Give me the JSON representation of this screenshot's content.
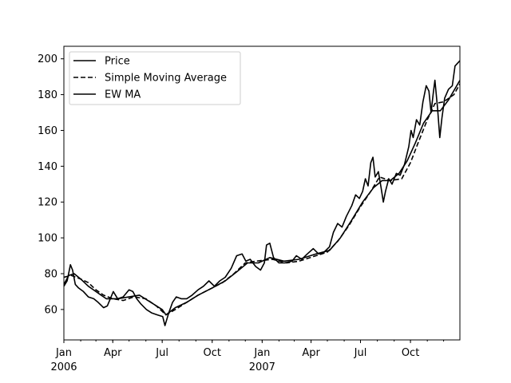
{
  "chart_data": {
    "type": "line",
    "title": "",
    "xlabel": "",
    "ylabel": "",
    "x_range": [
      "2006-01-01",
      "2007-12-31"
    ],
    "ylim": [
      43,
      207
    ],
    "y_ticks": [
      60,
      80,
      100,
      120,
      140,
      160,
      180,
      200
    ],
    "x_ticks": [
      {
        "date": "2006-01-01",
        "label": "Jan",
        "sublabel": "2006"
      },
      {
        "date": "2006-04-01",
        "label": "Apr",
        "sublabel": ""
      },
      {
        "date": "2006-07-01",
        "label": "Jul",
        "sublabel": ""
      },
      {
        "date": "2006-10-01",
        "label": "Oct",
        "sublabel": ""
      },
      {
        "date": "2007-01-01",
        "label": "Jan",
        "sublabel": "2007"
      },
      {
        "date": "2007-04-01",
        "label": "Apr",
        "sublabel": ""
      },
      {
        "date": "2007-07-01",
        "label": "Jul",
        "sublabel": ""
      },
      {
        "date": "2007-10-01",
        "label": "Oct",
        "sublabel": ""
      }
    ],
    "grid": false,
    "legend_position": "upper left",
    "line_color": "#000000",
    "series": [
      {
        "name": "Price",
        "style": "solid",
        "points": [
          [
            "2006-01-01",
            73
          ],
          [
            "2006-01-07",
            76
          ],
          [
            "2006-01-13",
            85
          ],
          [
            "2006-01-17",
            82
          ],
          [
            "2006-01-22",
            74
          ],
          [
            "2006-01-28",
            72
          ],
          [
            "2006-02-06",
            70
          ],
          [
            "2006-02-15",
            67
          ],
          [
            "2006-02-25",
            66
          ],
          [
            "2006-03-05",
            64
          ],
          [
            "2006-03-15",
            61
          ],
          [
            "2006-03-22",
            62
          ],
          [
            "2006-04-02",
            70
          ],
          [
            "2006-04-10",
            66
          ],
          [
            "2006-04-20",
            67
          ],
          [
            "2006-05-01",
            71
          ],
          [
            "2006-05-08",
            70
          ],
          [
            "2006-05-15",
            66
          ],
          [
            "2006-05-23",
            63
          ],
          [
            "2006-06-02",
            60
          ],
          [
            "2006-06-12",
            58
          ],
          [
            "2006-06-22",
            57
          ],
          [
            "2006-07-02",
            56
          ],
          [
            "2006-07-06",
            51
          ],
          [
            "2006-07-13",
            58
          ],
          [
            "2006-07-20",
            64
          ],
          [
            "2006-07-27",
            67
          ],
          [
            "2006-08-05",
            66
          ],
          [
            "2006-08-15",
            66
          ],
          [
            "2006-08-25",
            68
          ],
          [
            "2006-09-05",
            71
          ],
          [
            "2006-09-15",
            73
          ],
          [
            "2006-09-25",
            76
          ],
          [
            "2006-10-05",
            73
          ],
          [
            "2006-10-15",
            76
          ],
          [
            "2006-10-25",
            78
          ],
          [
            "2006-11-05",
            83
          ],
          [
            "2006-11-15",
            90
          ],
          [
            "2006-11-25",
            91
          ],
          [
            "2006-12-02",
            87
          ],
          [
            "2006-12-10",
            88
          ],
          [
            "2006-12-20",
            84
          ],
          [
            "2006-12-29",
            82
          ],
          [
            "2007-01-05",
            86
          ],
          [
            "2007-01-09",
            96
          ],
          [
            "2007-01-15",
            97
          ],
          [
            "2007-01-22",
            89
          ],
          [
            "2007-02-01",
            86
          ],
          [
            "2007-02-12",
            86
          ],
          [
            "2007-02-25",
            87
          ],
          [
            "2007-03-05",
            90
          ],
          [
            "2007-03-15",
            88
          ],
          [
            "2007-03-25",
            91
          ],
          [
            "2007-04-05",
            94
          ],
          [
            "2007-04-15",
            91
          ],
          [
            "2007-04-25",
            92
          ],
          [
            "2007-05-05",
            95
          ],
          [
            "2007-05-12",
            103
          ],
          [
            "2007-05-20",
            108
          ],
          [
            "2007-05-28",
            106
          ],
          [
            "2007-06-05",
            112
          ],
          [
            "2007-06-15",
            118
          ],
          [
            "2007-06-22",
            124
          ],
          [
            "2007-06-29",
            122
          ],
          [
            "2007-07-05",
            126
          ],
          [
            "2007-07-10",
            133
          ],
          [
            "2007-07-15",
            129
          ],
          [
            "2007-07-20",
            142
          ],
          [
            "2007-07-24",
            145
          ],
          [
            "2007-07-28",
            134
          ],
          [
            "2007-08-03",
            137
          ],
          [
            "2007-08-08",
            128
          ],
          [
            "2007-08-12",
            120
          ],
          [
            "2007-08-16",
            126
          ],
          [
            "2007-08-22",
            133
          ],
          [
            "2007-08-28",
            130
          ],
          [
            "2007-09-05",
            136
          ],
          [
            "2007-09-12",
            135
          ],
          [
            "2007-09-20",
            141
          ],
          [
            "2007-09-28",
            151
          ],
          [
            "2007-10-02",
            160
          ],
          [
            "2007-10-06",
            156
          ],
          [
            "2007-10-12",
            166
          ],
          [
            "2007-10-18",
            163
          ],
          [
            "2007-10-24",
            176
          ],
          [
            "2007-10-30",
            185
          ],
          [
            "2007-11-04",
            182
          ],
          [
            "2007-11-08",
            170
          ],
          [
            "2007-11-12",
            181
          ],
          [
            "2007-11-15",
            188
          ],
          [
            "2007-11-20",
            172
          ],
          [
            "2007-11-24",
            156
          ],
          [
            "2007-11-28",
            167
          ],
          [
            "2007-12-03",
            178
          ],
          [
            "2007-12-10",
            183
          ],
          [
            "2007-12-17",
            185
          ],
          [
            "2007-12-22",
            196
          ],
          [
            "2007-12-31",
            199
          ]
        ]
      },
      {
        "name": "Simple Moving Average",
        "style": "dashed",
        "points": [
          [
            "2006-01-01",
            78
          ],
          [
            "2006-01-15",
            79
          ],
          [
            "2006-02-01",
            77
          ],
          [
            "2006-02-15",
            75
          ],
          [
            "2006-03-01",
            71
          ],
          [
            "2006-03-15",
            68
          ],
          [
            "2006-04-01",
            66
          ],
          [
            "2006-04-20",
            65
          ],
          [
            "2006-05-10",
            67
          ],
          [
            "2006-06-01",
            66
          ],
          [
            "2006-06-20",
            62
          ],
          [
            "2006-07-08",
            57
          ],
          [
            "2006-07-25",
            60
          ],
          [
            "2006-08-15",
            64
          ],
          [
            "2006-09-05",
            68
          ],
          [
            "2006-10-01",
            72
          ],
          [
            "2006-10-20",
            75
          ],
          [
            "2006-11-10",
            80
          ],
          [
            "2006-12-01",
            86
          ],
          [
            "2006-12-20",
            87
          ],
          [
            "2007-01-20",
            88
          ],
          [
            "2007-02-15",
            86
          ],
          [
            "2007-03-10",
            87
          ],
          [
            "2007-04-10",
            90
          ],
          [
            "2007-05-01",
            92
          ],
          [
            "2007-05-20",
            98
          ],
          [
            "2007-06-10",
            107
          ],
          [
            "2007-06-30",
            117
          ],
          [
            "2007-07-20",
            126
          ],
          [
            "2007-08-05",
            134
          ],
          [
            "2007-08-25",
            132
          ],
          [
            "2007-09-15",
            133
          ],
          [
            "2007-10-01",
            142
          ],
          [
            "2007-10-15",
            153
          ],
          [
            "2007-11-01",
            166
          ],
          [
            "2007-11-15",
            175
          ],
          [
            "2007-12-01",
            176
          ],
          [
            "2007-12-20",
            180
          ],
          [
            "2007-12-31",
            186
          ]
        ]
      },
      {
        "name": "EW MA",
        "style": "solid",
        "points": [
          [
            "2006-01-01",
            74
          ],
          [
            "2006-01-10",
            79
          ],
          [
            "2006-01-20",
            80
          ],
          [
            "2006-02-01",
            77
          ],
          [
            "2006-02-15",
            73
          ],
          [
            "2006-03-01",
            70
          ],
          [
            "2006-03-20",
            66
          ],
          [
            "2006-04-10",
            66
          ],
          [
            "2006-05-01",
            67
          ],
          [
            "2006-05-20",
            68
          ],
          [
            "2006-06-10",
            64
          ],
          [
            "2006-07-01",
            60
          ],
          [
            "2006-07-08",
            57
          ],
          [
            "2006-07-25",
            61
          ],
          [
            "2006-08-15",
            64
          ],
          [
            "2006-09-05",
            68
          ],
          [
            "2006-10-01",
            72
          ],
          [
            "2006-10-25",
            76
          ],
          [
            "2006-11-15",
            81
          ],
          [
            "2006-12-05",
            86
          ],
          [
            "2006-12-25",
            86
          ],
          [
            "2007-01-15",
            89
          ],
          [
            "2007-02-10",
            87
          ],
          [
            "2007-03-10",
            88
          ],
          [
            "2007-04-10",
            91
          ],
          [
            "2007-05-05",
            93
          ],
          [
            "2007-05-25",
            100
          ],
          [
            "2007-06-15",
            110
          ],
          [
            "2007-07-05",
            120
          ],
          [
            "2007-07-25",
            128
          ],
          [
            "2007-08-10",
            132
          ],
          [
            "2007-08-25",
            132
          ],
          [
            "2007-09-10",
            136
          ],
          [
            "2007-09-25",
            143
          ],
          [
            "2007-10-10",
            153
          ],
          [
            "2007-10-25",
            164
          ],
          [
            "2007-11-10",
            171
          ],
          [
            "2007-11-25",
            171
          ],
          [
            "2007-12-10",
            177
          ],
          [
            "2007-12-31",
            188
          ]
        ]
      }
    ]
  }
}
